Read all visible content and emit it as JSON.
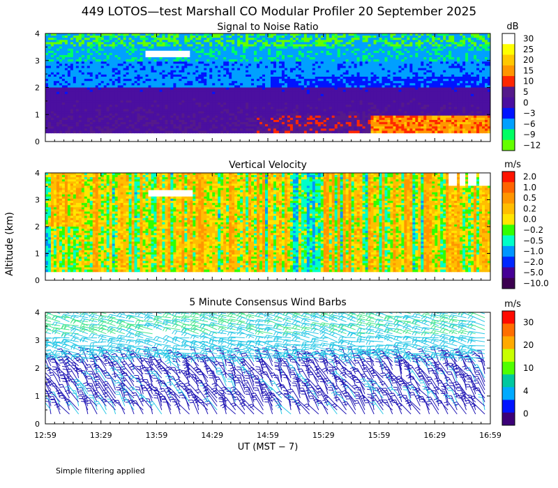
{
  "figure_title": "449 LOTOS—test Marshall CO Modular Profiler 20 September 2025",
  "y_axis_label": "Altitude (km)",
  "x_axis_label": "UT  (MST − 7)",
  "footnote": "Simple filtering applied",
  "x_ticks": [
    "12:59",
    "13:29",
    "13:59",
    "14:29",
    "14:59",
    "15:29",
    "15:59",
    "16:29",
    "16:59"
  ],
  "chart_data": [
    {
      "type": "heatmap",
      "title": "Signal to Noise Ratio",
      "xlabel": "UT  (MST − 7)",
      "ylabel": "Altitude (km)",
      "xlim": [
        "12:59",
        "16:59"
      ],
      "ylim": [
        0,
        4
      ],
      "y_ticks": [
        "0",
        "1",
        "2",
        "3",
        "4"
      ],
      "colorbar": {
        "unit": "dB",
        "labels": [
          "30",
          "25",
          "20",
          "15",
          "10",
          "5",
          "0",
          "−3",
          "−6",
          "−9",
          "−12"
        ],
        "colors": [
          "#ffffff",
          "#ffff00",
          "#ffc800",
          "#ff9600",
          "#ff2800",
          "#551a8b",
          "#4b0fa0",
          "#0014ff",
          "#00a0ff",
          "#00ff64",
          "#64ff00"
        ]
      },
      "description": [
        {
          "alt_km": [
            0.3,
            1.0
          ],
          "x": [
            "12:59",
            "14:59"
          ],
          "snr_db": [
            0,
            5
          ]
        },
        {
          "alt_km": [
            0.3,
            1.0
          ],
          "x": [
            "14:59",
            "15:59"
          ],
          "snr_db": [
            5,
            10
          ]
        },
        {
          "alt_km": [
            0.3,
            1.0
          ],
          "x": [
            "15:59",
            "16:59"
          ],
          "snr_db": [
            10,
            20
          ]
        },
        {
          "alt_km": [
            1.0,
            2.0
          ],
          "x": [
            "12:59",
            "16:59"
          ],
          "snr_db": [
            0,
            5
          ]
        },
        {
          "alt_km": [
            2.0,
            3.0
          ],
          "x": [
            "12:59",
            "16:59"
          ],
          "snr_db": [
            -6,
            0
          ]
        },
        {
          "alt_km": [
            3.0,
            3.4
          ],
          "x": [
            "13:29",
            "14:29"
          ],
          "snr_db": [
            -12,
            30
          ]
        },
        {
          "alt_km": [
            3.4,
            4.0
          ],
          "x": [
            "12:59",
            "16:59"
          ],
          "snr_db": [
            -9,
            -3
          ]
        }
      ]
    },
    {
      "type": "heatmap",
      "title": "Vertical Velocity",
      "xlabel": "UT  (MST − 7)",
      "ylabel": "Altitude (km)",
      "xlim": [
        "12:59",
        "16:59"
      ],
      "ylim": [
        0,
        4
      ],
      "y_ticks": [
        "0",
        "1",
        "2",
        "3",
        "4"
      ],
      "colorbar": {
        "unit": "m/s",
        "labels": [
          "2.0",
          "1.0",
          "0.5",
          "0.2",
          "0.0",
          "−0.2",
          "−0.5",
          "−1.0",
          "−2.0",
          "−5.0",
          "−10.0"
        ],
        "colors": [
          "#ff1400",
          "#ff6400",
          "#ff9600",
          "#ffbe00",
          "#ffe600",
          "#32ff00",
          "#00ffc8",
          "#0096ff",
          "#0028ff",
          "#460096",
          "#3c0050"
        ]
      },
      "description": [
        {
          "alt_km": [
            0.3,
            4.0
          ],
          "x": [
            "12:59",
            "16:59"
          ],
          "w_ms": [
            -0.5,
            0.5
          ]
        }
      ]
    },
    {
      "type": "wind_barbs",
      "title": "5 Minute Consensus Wind Barbs",
      "xlabel": "UT  (MST − 7)",
      "ylabel": "Altitude (km)",
      "xlim": [
        "12:59",
        "16:59"
      ],
      "ylim": [
        0,
        4
      ],
      "y_ticks": [
        "0",
        "1",
        "2",
        "3",
        "4"
      ],
      "colorbar": {
        "unit": "m/s",
        "labels": [
          "30",
          "20",
          "10",
          "4",
          "0"
        ],
        "colors": [
          "#ff0a00",
          "#ff6e00",
          "#ffaa00",
          "#c8ff00",
          "#50ff00",
          "#00c8a0",
          "#00aaff",
          "#0014ff",
          "#3c0078"
        ]
      },
      "speed_layers": [
        {
          "alt_km": [
            0.3,
            2.3
          ],
          "speed_ms": 3,
          "direction": "from north-west"
        },
        {
          "alt_km": [
            2.3,
            3.1
          ],
          "speed_ms": 6,
          "direction": "from west"
        },
        {
          "alt_km": [
            3.1,
            4.0
          ],
          "speed_ms": 8,
          "direction": "from west-north-west"
        }
      ]
    }
  ]
}
